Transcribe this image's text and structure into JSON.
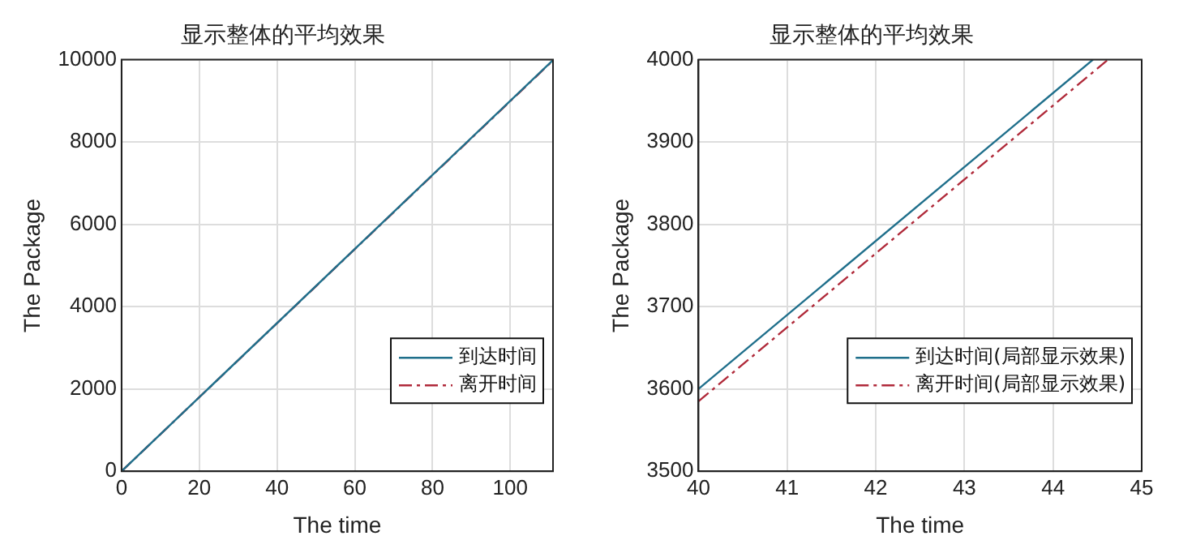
{
  "chart_data": [
    {
      "type": "line",
      "title": "显示整体的平均效果",
      "xlabel": "The time",
      "ylabel": "The Package",
      "xlim": [
        0,
        111
      ],
      "xticks": [
        0,
        20,
        40,
        60,
        80,
        100
      ],
      "ylim": [
        0,
        10000
      ],
      "yticks": [
        0,
        2000,
        4000,
        6000,
        8000,
        10000
      ],
      "grid": true,
      "legend": "bottom right",
      "series": [
        {
          "name": "到达时间",
          "color": "#1f6f8b",
          "x": [
            0,
            111
          ],
          "values": [
            0,
            9990
          ],
          "line_style": "solid"
        },
        {
          "name": "离开时间",
          "color": "#b02a3a",
          "x": [
            0,
            111
          ],
          "values": [
            0,
            9980
          ],
          "line_style": "dashed"
        }
      ]
    },
    {
      "type": "line",
      "title": "显示整体的平均效果",
      "xlabel": "The time",
      "ylabel": "The Package",
      "xlim": [
        40,
        45
      ],
      "xticks": [
        40,
        41,
        42,
        43,
        44,
        45
      ],
      "ylim": [
        3500,
        4000
      ],
      "yticks": [
        3500,
        3600,
        3700,
        3800,
        3900,
        4000
      ],
      "grid": true,
      "legend": "bottom right",
      "series": [
        {
          "name": "到达时间(局部显示效果)",
          "color": "#1f6f8b",
          "x": [
            40,
            44.45
          ],
          "values": [
            3600,
            4000
          ],
          "line_style": "solid"
        },
        {
          "name": "离开时间(局部显示效果)",
          "color": "#b02a3a",
          "x": [
            40,
            44.62
          ],
          "values": [
            3585,
            4000
          ],
          "line_style": "dashed"
        }
      ]
    }
  ]
}
